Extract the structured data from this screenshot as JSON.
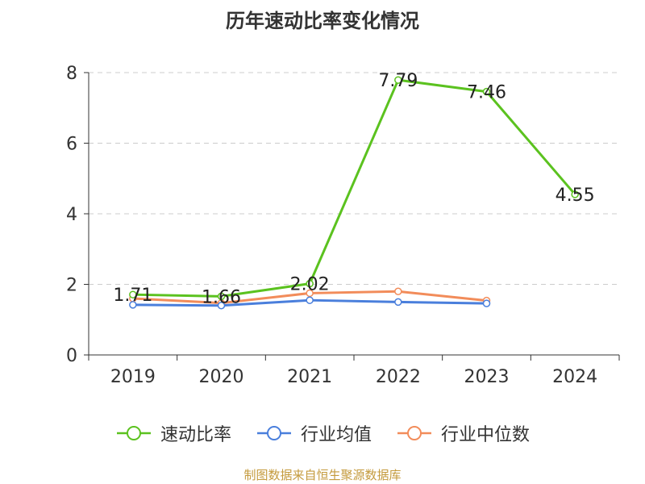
{
  "chart_data": {
    "type": "line",
    "title": "历年速动比率变化情况",
    "categories": [
      "2019",
      "2020",
      "2021",
      "2022",
      "2023",
      "2024"
    ],
    "ylim": [
      0,
      8
    ],
    "yticks": [
      0,
      2,
      4,
      6,
      8
    ],
    "grid": true,
    "legend_position": "bottom",
    "series": [
      {
        "name": "速动比率",
        "color": "#5bc21f",
        "values": [
          1.71,
          1.66,
          2.02,
          7.79,
          7.46,
          4.55
        ],
        "labels": [
          "1.71",
          "1.66",
          "2.02",
          "7.79",
          "7.46",
          "4.55"
        ]
      },
      {
        "name": "行业均值",
        "color": "#4a7fdc",
        "values": [
          1.42,
          1.4,
          1.55,
          1.5,
          1.46,
          null
        ]
      },
      {
        "name": "行业中位数",
        "color": "#f28c5a",
        "values": [
          1.6,
          1.47,
          1.75,
          1.8,
          1.54,
          null
        ]
      }
    ]
  },
  "footer": {
    "source": "制图数据来自恒生聚源数据库"
  }
}
